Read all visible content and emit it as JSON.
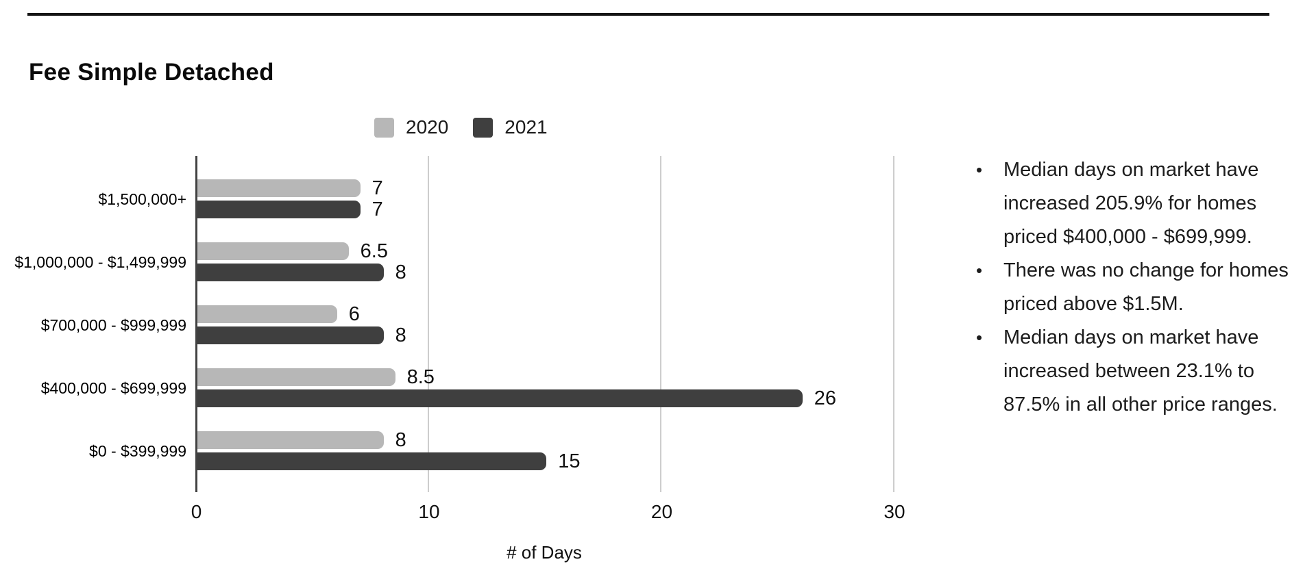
{
  "page": {
    "title": "Fee Simple Detached"
  },
  "legend": {
    "items": [
      {
        "label": "2020",
        "color": "#b7b7b7"
      },
      {
        "label": "2021",
        "color": "#3f3f3f"
      }
    ]
  },
  "chart_data": {
    "type": "bar",
    "orientation": "horizontal",
    "title": "Fee Simple Detached",
    "categories": [
      "$1,500,000+",
      "$1,000,000 - $1,499,999",
      "$700,000 - $999,999",
      "$400,000 - $699,999",
      "$0 - $399,999"
    ],
    "series": [
      {
        "name": "2020",
        "color": "#b7b7b7",
        "values": [
          7,
          6.5,
          6,
          8.5,
          8
        ]
      },
      {
        "name": "2021",
        "color": "#3f3f3f",
        "values": [
          7,
          8,
          8,
          26,
          15
        ]
      }
    ],
    "value_labels": [
      "7",
      "6.5",
      "6",
      "8.5",
      "8",
      "7",
      "8",
      "8",
      "26",
      "15"
    ],
    "xlabel": "# of Days",
    "x_ticks": [
      0,
      10,
      20,
      30
    ],
    "xlim": [
      0,
      31.7
    ],
    "grid": true,
    "legend_position": "top",
    "bar_value_labels_shown": true
  },
  "notes": {
    "bullets": [
      {
        "lines": [
          "Median days on market have",
          "increased 205.9% for homes",
          "priced $400,000 - $699,999."
        ]
      },
      {
        "lines": [
          "There was no change for homes",
          "priced above $1.5M."
        ]
      },
      {
        "lines": [
          "Median days on market have",
          "increased between 23.1% to",
          "87.5% in all other price ranges."
        ]
      }
    ]
  },
  "colors": {
    "axis": "#424242",
    "gridline": "#cdcdcd",
    "rule": "#151515",
    "text": "#1a1a1a"
  }
}
